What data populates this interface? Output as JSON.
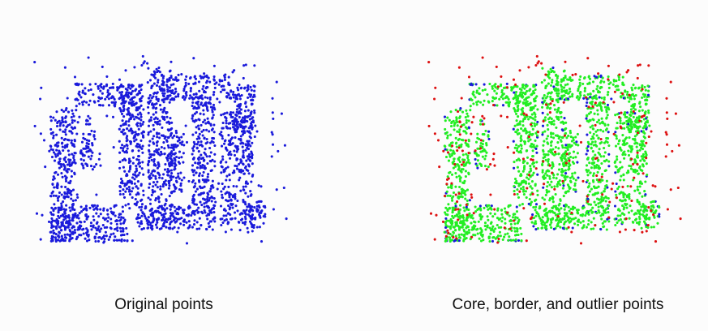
{
  "captions": {
    "left": "Original points",
    "right": "Core, border, and outlier points"
  },
  "colors": {
    "original": "#1a1adb",
    "core": "#22ee22",
    "border": "#1a1adb",
    "outlier": "#dd1111",
    "background": "#fcfcfc"
  }
}
